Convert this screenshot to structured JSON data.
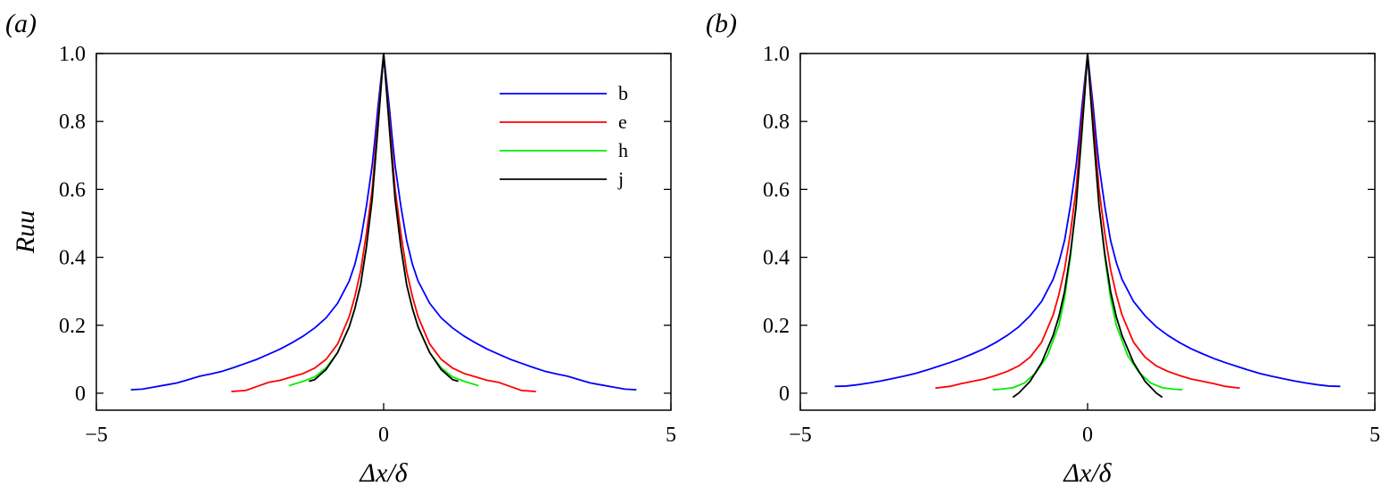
{
  "chart_data": [
    {
      "type": "line",
      "panel_label": "(a)",
      "xlabel": "Δx/δ",
      "ylabel": "Ruu",
      "xlim": [
        -5,
        5
      ],
      "ylim": [
        -0.05,
        1.0
      ],
      "xticks": [
        -5,
        0,
        5
      ],
      "xtick_labels": [
        "−5",
        "0",
        "5"
      ],
      "yticks": [
        0,
        0.2,
        0.4,
        0.6,
        0.8,
        1.0
      ],
      "ytick_labels": [
        "0",
        "0.2",
        "0.4",
        "0.6",
        "0.8",
        "1.0"
      ],
      "grid": false,
      "legend": "top-right",
      "series": [
        {
          "name": "b",
          "color": "#0000ff",
          "x": [
            -4.4,
            -4.2,
            -4.0,
            -3.8,
            -3.6,
            -3.4,
            -3.2,
            -3.0,
            -2.8,
            -2.6,
            -2.4,
            -2.2,
            -2.0,
            -1.8,
            -1.6,
            -1.4,
            -1.2,
            -1.0,
            -0.8,
            -0.6,
            -0.5,
            -0.4,
            -0.3,
            -0.2,
            -0.15,
            -0.1,
            -0.05,
            0,
            0.05,
            0.1,
            0.15,
            0.2,
            0.3,
            0.4,
            0.5,
            0.6,
            0.8,
            1.0,
            1.2,
            1.4,
            1.6,
            1.8,
            2.0,
            2.2,
            2.4,
            2.6,
            2.8,
            3.0,
            3.2,
            3.4,
            3.6,
            3.8,
            4.0,
            4.2,
            4.4
          ],
          "y": [
            0.01,
            0.012,
            0.018,
            0.024,
            0.03,
            0.04,
            0.05,
            0.057,
            0.065,
            0.076,
            0.088,
            0.1,
            0.115,
            0.13,
            0.148,
            0.168,
            0.192,
            0.222,
            0.265,
            0.33,
            0.38,
            0.45,
            0.55,
            0.67,
            0.75,
            0.84,
            0.92,
            1.0,
            0.92,
            0.84,
            0.75,
            0.67,
            0.55,
            0.45,
            0.38,
            0.33,
            0.265,
            0.222,
            0.192,
            0.168,
            0.148,
            0.13,
            0.115,
            0.1,
            0.088,
            0.076,
            0.065,
            0.057,
            0.05,
            0.04,
            0.03,
            0.024,
            0.018,
            0.012,
            0.01
          ]
        },
        {
          "name": "e",
          "color": "#ff0000",
          "x": [
            -2.65,
            -2.4,
            -2.2,
            -2.0,
            -1.8,
            -1.6,
            -1.4,
            -1.2,
            -1.0,
            -0.8,
            -0.6,
            -0.5,
            -0.4,
            -0.3,
            -0.2,
            -0.1,
            -0.05,
            0,
            0.05,
            0.1,
            0.2,
            0.3,
            0.4,
            0.5,
            0.6,
            0.8,
            1.0,
            1.2,
            1.4,
            1.6,
            1.8,
            2.0,
            2.2,
            2.4,
            2.65
          ],
          "y": [
            0.005,
            0.008,
            0.02,
            0.032,
            0.038,
            0.048,
            0.058,
            0.074,
            0.1,
            0.145,
            0.225,
            0.285,
            0.36,
            0.47,
            0.6,
            0.8,
            0.9,
            1.0,
            0.9,
            0.8,
            0.6,
            0.47,
            0.36,
            0.285,
            0.225,
            0.145,
            0.1,
            0.074,
            0.058,
            0.048,
            0.038,
            0.032,
            0.02,
            0.008,
            0.005
          ]
        },
        {
          "name": "h",
          "color": "#00ee00",
          "x": [
            -1.65,
            -1.4,
            -1.2,
            -1.0,
            -0.8,
            -0.6,
            -0.5,
            -0.4,
            -0.3,
            -0.2,
            -0.1,
            -0.05,
            0,
            0.05,
            0.1,
            0.2,
            0.3,
            0.4,
            0.5,
            0.6,
            0.8,
            1.0,
            1.2,
            1.4,
            1.65
          ],
          "y": [
            0.022,
            0.035,
            0.048,
            0.075,
            0.12,
            0.195,
            0.25,
            0.32,
            0.43,
            0.57,
            0.78,
            0.89,
            1.0,
            0.89,
            0.78,
            0.57,
            0.43,
            0.32,
            0.25,
            0.195,
            0.12,
            0.075,
            0.048,
            0.035,
            0.022
          ]
        },
        {
          "name": "j",
          "color": "#000000",
          "x": [
            -1.3,
            -1.2,
            -1.0,
            -0.8,
            -0.6,
            -0.5,
            -0.4,
            -0.3,
            -0.2,
            -0.1,
            -0.05,
            0,
            0.05,
            0.1,
            0.2,
            0.3,
            0.4,
            0.5,
            0.6,
            0.8,
            1.0,
            1.2,
            1.3
          ],
          "y": [
            0.035,
            0.04,
            0.07,
            0.12,
            0.195,
            0.25,
            0.32,
            0.43,
            0.57,
            0.78,
            0.89,
            1.0,
            0.89,
            0.78,
            0.57,
            0.43,
            0.32,
            0.25,
            0.195,
            0.12,
            0.07,
            0.04,
            0.035
          ]
        }
      ]
    },
    {
      "type": "line",
      "panel_label": "(b)",
      "xlabel": "Δx/δ",
      "ylabel": "",
      "xlim": [
        -5,
        5
      ],
      "ylim": [
        -0.05,
        1.0
      ],
      "xticks": [
        -5,
        0,
        5
      ],
      "xtick_labels": [
        "−5",
        "0",
        "5"
      ],
      "yticks": [
        0,
        0.2,
        0.4,
        0.6,
        0.8,
        1.0
      ],
      "ytick_labels": [
        "0",
        "0.2",
        "0.4",
        "0.6",
        "0.8",
        "1.0"
      ],
      "grid": false,
      "series": [
        {
          "color": "#0000ff",
          "x": [
            -4.4,
            -4.2,
            -4.0,
            -3.8,
            -3.6,
            -3.4,
            -3.2,
            -3.0,
            -2.8,
            -2.6,
            -2.4,
            -2.2,
            -2.0,
            -1.8,
            -1.6,
            -1.4,
            -1.2,
            -1.0,
            -0.8,
            -0.6,
            -0.5,
            -0.4,
            -0.3,
            -0.2,
            -0.15,
            -0.1,
            -0.05,
            0,
            0.05,
            0.1,
            0.15,
            0.2,
            0.3,
            0.4,
            0.5,
            0.6,
            0.8,
            1.0,
            1.2,
            1.4,
            1.6,
            1.8,
            2.0,
            2.2,
            2.4,
            2.6,
            2.8,
            3.0,
            3.2,
            3.4,
            3.6,
            3.8,
            4.0,
            4.2,
            4.4
          ],
          "y": [
            0.02,
            0.021,
            0.025,
            0.03,
            0.036,
            0.043,
            0.05,
            0.058,
            0.068,
            0.079,
            0.09,
            0.102,
            0.116,
            0.131,
            0.149,
            0.17,
            0.195,
            0.228,
            0.27,
            0.335,
            0.385,
            0.45,
            0.55,
            0.67,
            0.75,
            0.84,
            0.92,
            1.0,
            0.92,
            0.84,
            0.75,
            0.67,
            0.55,
            0.45,
            0.385,
            0.335,
            0.27,
            0.228,
            0.195,
            0.17,
            0.149,
            0.131,
            0.116,
            0.102,
            0.09,
            0.079,
            0.068,
            0.058,
            0.05,
            0.043,
            0.036,
            0.03,
            0.025,
            0.021,
            0.02
          ]
        },
        {
          "color": "#ff0000",
          "x": [
            -2.65,
            -2.4,
            -2.2,
            -2.0,
            -1.8,
            -1.6,
            -1.4,
            -1.2,
            -1.0,
            -0.8,
            -0.6,
            -0.5,
            -0.4,
            -0.3,
            -0.2,
            -0.1,
            -0.05,
            0,
            0.05,
            0.1,
            0.2,
            0.3,
            0.4,
            0.5,
            0.6,
            0.8,
            1.0,
            1.2,
            1.4,
            1.6,
            1.8,
            2.0,
            2.2,
            2.4,
            2.65
          ],
          "y": [
            0.015,
            0.02,
            0.028,
            0.035,
            0.042,
            0.052,
            0.064,
            0.08,
            0.106,
            0.15,
            0.23,
            0.29,
            0.365,
            0.47,
            0.6,
            0.8,
            0.9,
            1.0,
            0.9,
            0.8,
            0.6,
            0.47,
            0.365,
            0.29,
            0.23,
            0.15,
            0.106,
            0.08,
            0.064,
            0.052,
            0.042,
            0.035,
            0.028,
            0.02,
            0.015
          ]
        },
        {
          "color": "#00ee00",
          "x": [
            -1.65,
            -1.5,
            -1.3,
            -1.1,
            -0.9,
            -0.7,
            -0.5,
            -0.4,
            -0.3,
            -0.2,
            -0.1,
            -0.05,
            0,
            0.05,
            0.1,
            0.2,
            0.3,
            0.4,
            0.5,
            0.7,
            0.9,
            1.1,
            1.3,
            1.5,
            1.65
          ],
          "y": [
            0.01,
            0.012,
            0.016,
            0.03,
            0.06,
            0.11,
            0.2,
            0.28,
            0.4,
            0.55,
            0.76,
            0.88,
            1.0,
            0.88,
            0.76,
            0.55,
            0.4,
            0.28,
            0.2,
            0.11,
            0.06,
            0.03,
            0.016,
            0.012,
            0.01
          ]
        },
        {
          "color": "#000000",
          "x": [
            -1.3,
            -1.2,
            -1.0,
            -0.8,
            -0.6,
            -0.5,
            -0.4,
            -0.3,
            -0.2,
            -0.1,
            -0.05,
            0,
            0.05,
            0.1,
            0.2,
            0.3,
            0.4,
            0.5,
            0.6,
            0.8,
            1.0,
            1.2,
            1.3
          ],
          "y": [
            -0.012,
            0.0,
            0.035,
            0.09,
            0.17,
            0.225,
            0.3,
            0.41,
            0.55,
            0.77,
            0.88,
            1.0,
            0.88,
            0.77,
            0.55,
            0.41,
            0.3,
            0.225,
            0.17,
            0.09,
            0.035,
            0.0,
            -0.012
          ]
        }
      ]
    }
  ]
}
